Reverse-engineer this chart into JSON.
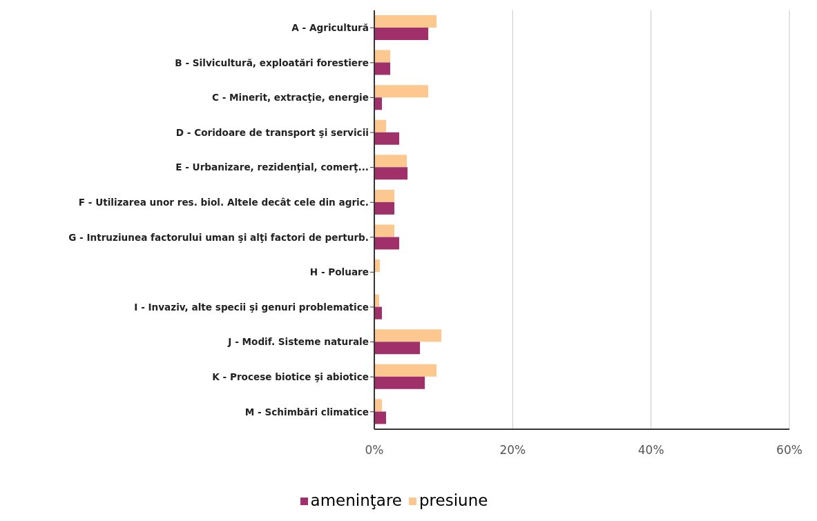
{
  "chart_data": {
    "type": "bar",
    "orientation": "horizontal",
    "categories": [
      "A - Agricultură",
      "B - Silvicultură, exploatări forestiere",
      "C - Minerit, extracţie, energie",
      "D - Coridoare de transport şi servicii",
      "E - Urbanizare, rezidenţial, comerţ...",
      "F - Utilizarea unor res. biol. Altele decât cele din agric.",
      "G - Intruziunea factorului uman şi alţi factori de perturb.",
      "H - Poluare",
      "I - Invaziv, alte specii şi genuri problematice",
      "J - Modif. Sisteme naturale",
      "K - Procese biotice şi abiotice",
      "M - Schimbări climatice"
    ],
    "series": [
      {
        "name": "presiune",
        "color": "#fcc890",
        "values": [
          9.0,
          2.3,
          7.8,
          1.7,
          4.7,
          2.9,
          2.9,
          0.8,
          0.7,
          9.7,
          9.0,
          1.1
        ]
      },
      {
        "name": "ameninţare",
        "color": "#a0306a",
        "values": [
          7.8,
          2.3,
          1.1,
          3.6,
          4.8,
          2.9,
          3.6,
          0,
          1.1,
          6.6,
          7.3,
          1.7
        ]
      }
    ],
    "xlim": [
      0,
      60
    ],
    "xticks": [
      {
        "value": 0,
        "label": "0%"
      },
      {
        "value": 20,
        "label": "20%"
      },
      {
        "value": 40,
        "label": "40%"
      },
      {
        "value": 60,
        "label": "60%"
      }
    ],
    "grid": "x",
    "legend": "bottom"
  }
}
